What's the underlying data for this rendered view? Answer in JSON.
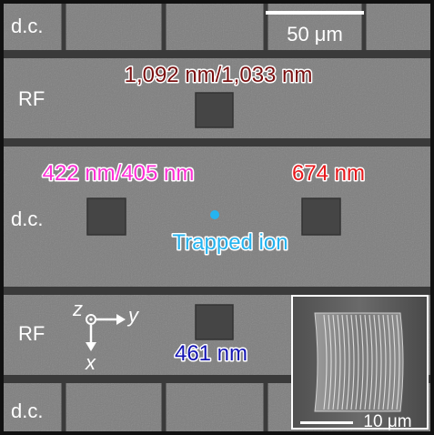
{
  "image": {
    "kind": "scanning electron micrograph of a surface ion trap",
    "colors": {
      "background_gray": "#7e7e7e",
      "gap_dark": "#3a3a3a",
      "pad_dark": "#454545",
      "border": "#111111",
      "rf_wavelength_label": "#7a0f0f",
      "violet_label": "#ff2fd6",
      "red_label": "#e8181b",
      "ion_label": "#25b4f0",
      "blue_label": "#1414b4",
      "outline": "#ffffff"
    }
  },
  "electrodes": {
    "dc_top": "d.c.",
    "rf_upper": "RF",
    "dc_middle": "d.c.",
    "rf_lower": "RF",
    "dc_bottom": "d.c."
  },
  "scale_bar": {
    "label": "50 μm"
  },
  "beam_labels": {
    "top": "1,092 nm/1,033 nm",
    "left": "422 nm/405 nm",
    "right": "674 nm",
    "bottom": "461 nm"
  },
  "ion": {
    "label": "Trapped ion",
    "color": "#25b4f0"
  },
  "axes": {
    "z": "z",
    "y": "y",
    "x": "x"
  },
  "inset": {
    "scale_label": "10 μm"
  }
}
